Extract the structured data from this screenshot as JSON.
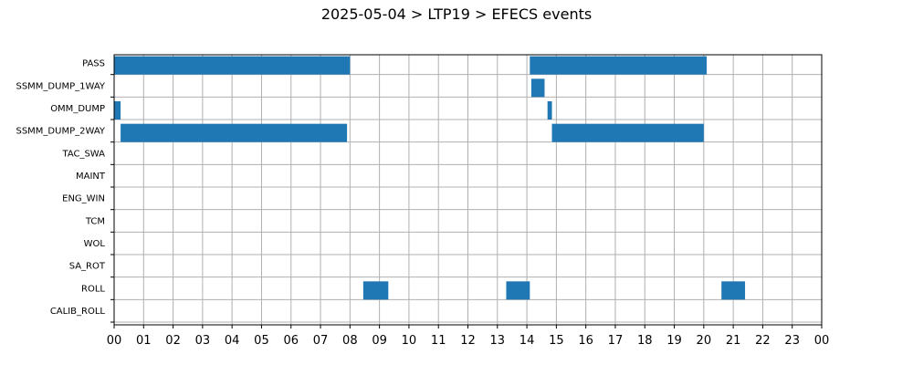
{
  "chart_data": {
    "type": "timeline",
    "title": "2025-05-04 > LTP19 > EFECS events",
    "xlabel": "",
    "ylabel": "",
    "xlim": [
      0,
      24
    ],
    "x_tick_labels": [
      "00",
      "01",
      "02",
      "03",
      "04",
      "05",
      "06",
      "07",
      "08",
      "09",
      "10",
      "11",
      "12",
      "13",
      "14",
      "15",
      "16",
      "17",
      "18",
      "19",
      "20",
      "21",
      "22",
      "23",
      "00"
    ],
    "grid": true,
    "bar_color": "#1f77b4",
    "rows": [
      "PASS",
      "SSMM_DUMP_1WAY",
      "OMM_DUMP",
      "SSMM_DUMP_2WAY",
      "TAC_SWA",
      "MAINT",
      "ENG_WIN",
      "TCM",
      "WOL",
      "SA_ROT",
      "ROLL",
      "CALIB_ROLL"
    ],
    "series": [
      {
        "row": "PASS",
        "intervals": [
          [
            0.0,
            8.0
          ],
          [
            14.1,
            20.1
          ]
        ]
      },
      {
        "row": "SSMM_DUMP_1WAY",
        "intervals": [
          [
            14.15,
            14.6
          ]
        ]
      },
      {
        "row": "OMM_DUMP",
        "intervals": [
          [
            0.0,
            0.22
          ],
          [
            14.7,
            14.85
          ]
        ]
      },
      {
        "row": "SSMM_DUMP_2WAY",
        "intervals": [
          [
            0.22,
            7.9
          ],
          [
            14.85,
            20.0
          ]
        ]
      },
      {
        "row": "TAC_SWA",
        "intervals": []
      },
      {
        "row": "MAINT",
        "intervals": []
      },
      {
        "row": "ENG_WIN",
        "intervals": []
      },
      {
        "row": "TCM",
        "intervals": []
      },
      {
        "row": "WOL",
        "intervals": []
      },
      {
        "row": "SA_ROT",
        "intervals": []
      },
      {
        "row": "ROLL",
        "intervals": [
          [
            8.45,
            9.3
          ],
          [
            13.3,
            14.1
          ],
          [
            20.6,
            21.4
          ]
        ]
      },
      {
        "row": "CALIB_ROLL",
        "intervals": []
      }
    ]
  }
}
